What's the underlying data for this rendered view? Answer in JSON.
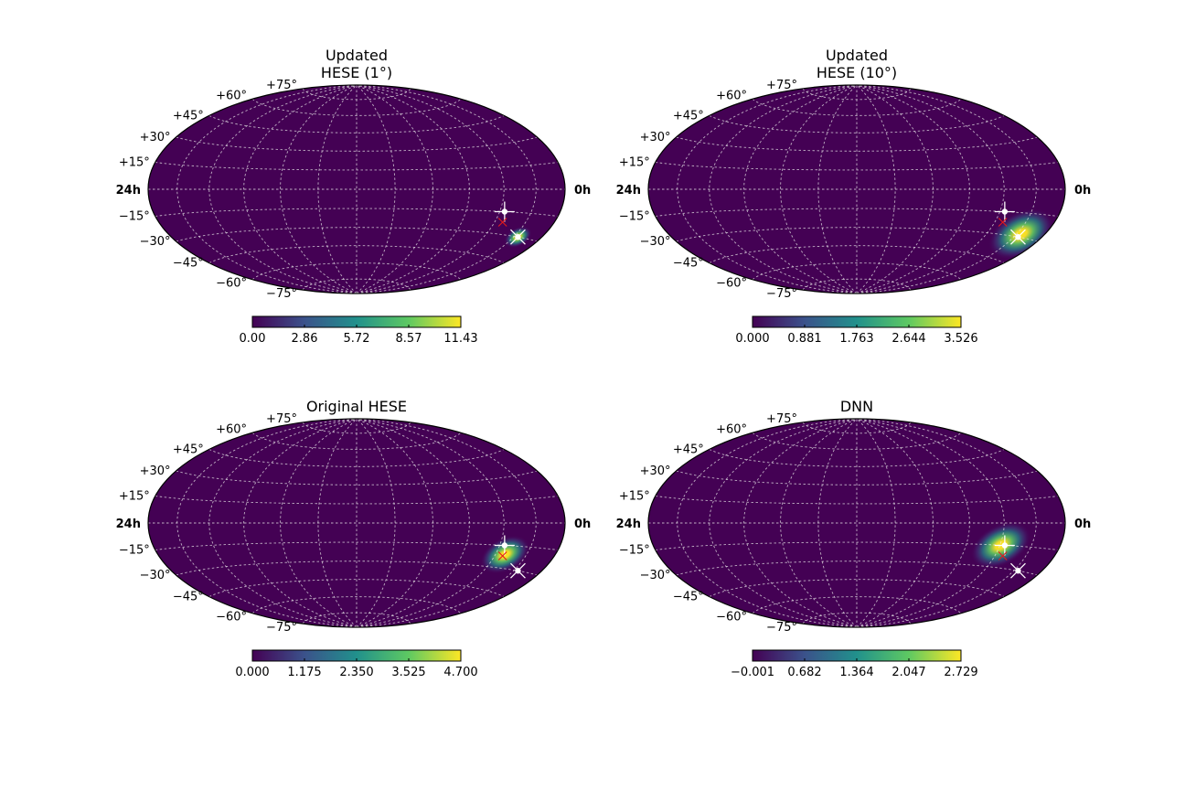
{
  "colormap": [
    "#440154",
    "#3b528b",
    "#21918c",
    "#5ec962",
    "#fde725"
  ],
  "background_color": "#440154",
  "marker_colors": {
    "best_fit": "#ffffff",
    "true_direction": "#e31a1c",
    "reference": "#ffffff"
  },
  "grid": true,
  "chart_data": [
    {
      "type": "heatmap",
      "projection": "hammer",
      "title_lines": [
        "Updated",
        "HESE (1°)"
      ],
      "dec_labels": [
        "+75°",
        "+60°",
        "+45°",
        "+30°",
        "+15°",
        "−15°",
        "−30°",
        "−45°",
        "−60°",
        "−75°"
      ],
      "ra_labels": {
        "left": "24h",
        "right": "0h"
      },
      "colorbar_ticks": [
        "0.00",
        "2.86",
        "5.72",
        "8.57",
        "11.43"
      ],
      "range": [
        0.0,
        11.43
      ],
      "hotspots": [
        {
          "ra_h": 1.7,
          "dec": -30,
          "sigma_deg": 5
        }
      ],
      "markers": {
        "best_fit": {
          "ra_h": 1.7,
          "dec": -30
        },
        "reference": {
          "ra_h": 3.7,
          "dec": -15
        },
        "true_direction": {
          "ra_h": 3.5,
          "dec": -22
        }
      }
    },
    {
      "type": "heatmap",
      "projection": "hammer",
      "title_lines": [
        "Updated",
        "HESE (10°)"
      ],
      "dec_labels": [
        "+75°",
        "+60°",
        "+45°",
        "+30°",
        "+15°",
        "−15°",
        "−30°",
        "−45°",
        "−60°",
        "−75°"
      ],
      "ra_labels": {
        "left": "24h",
        "right": "0h"
      },
      "colorbar_ticks": [
        "0.000",
        "0.881",
        "1.763",
        "2.644",
        "3.526"
      ],
      "range": [
        0.0,
        3.526
      ],
      "hotspots": [
        {
          "ra_h": 1.7,
          "dec": -28,
          "sigma_deg": 12
        }
      ],
      "markers": {
        "best_fit": {
          "ra_h": 1.7,
          "dec": -30
        },
        "reference": {
          "ra_h": 3.7,
          "dec": -15
        },
        "true_direction": {
          "ra_h": 3.5,
          "dec": -22
        }
      }
    },
    {
      "type": "heatmap",
      "projection": "hammer",
      "title_lines": [
        "Original HESE"
      ],
      "dec_labels": [
        "+75°",
        "+60°",
        "+45°",
        "+30°",
        "+15°",
        "−15°",
        "−30°",
        "−45°",
        "−60°",
        "−75°"
      ],
      "ra_labels": {
        "left": "24h",
        "right": "0h"
      },
      "colorbar_ticks": [
        "0.000",
        "1.175",
        "2.350",
        "3.525",
        "4.700"
      ],
      "range": [
        0.0,
        4.7
      ],
      "hotspots": [
        {
          "ra_h": 3.4,
          "dec": -21,
          "sigma_deg": 9
        }
      ],
      "markers": {
        "best_fit": {
          "ra_h": 1.7,
          "dec": -30
        },
        "reference": {
          "ra_h": 3.7,
          "dec": -15
        },
        "true_direction": {
          "ra_h": 3.5,
          "dec": -22
        }
      }
    },
    {
      "type": "heatmap",
      "projection": "hammer",
      "title_lines": [
        "DNN"
      ],
      "dec_labels": [
        "+75°",
        "+60°",
        "+45°",
        "+30°",
        "+15°",
        "−15°",
        "−30°",
        "−45°",
        "−60°",
        "−75°"
      ],
      "ra_labels": {
        "left": "24h",
        "right": "0h"
      },
      "colorbar_ticks": [
        "−0.001",
        "0.682",
        "1.364",
        "2.047",
        "2.729"
      ],
      "range": [
        -0.001,
        2.729
      ],
      "hotspots": [
        {
          "ra_h": 3.95,
          "dec": -15,
          "sigma_deg": 11
        }
      ],
      "markers": {
        "best_fit": {
          "ra_h": 1.7,
          "dec": -30
        },
        "reference": {
          "ra_h": 3.7,
          "dec": -15
        },
        "true_direction": {
          "ra_h": 3.5,
          "dec": -22
        }
      }
    }
  ]
}
